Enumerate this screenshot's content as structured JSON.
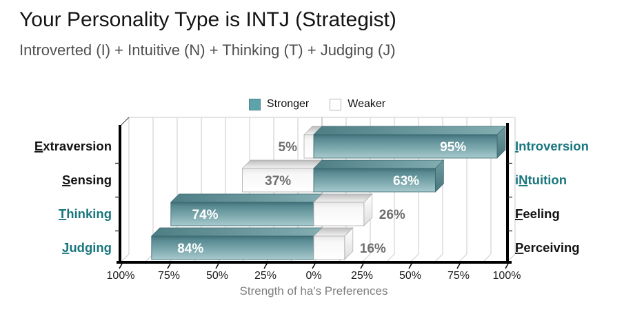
{
  "header": {
    "title": "Your Personality Type is INTJ (Strategist)",
    "subtitle": "Introverted (I) + Intuitive (N) + Thinking (T) + Judging (J)"
  },
  "legend": {
    "stronger": "Stronger",
    "weaker": "Weaker"
  },
  "colors": {
    "stronger_fill": "#5ca4a9",
    "weaker_fill": "#ffffff",
    "teal_label": "#19767d",
    "black_label": "#131313",
    "weaker_value_text": "#6e6e6e",
    "stronger_value_text": "#ffffff",
    "axis_tick_text": "#1a1a1a",
    "axis_title_text": "#7e7e7e"
  },
  "chart_data": {
    "type": "bar",
    "subtype": "diverging-horizontal-3d",
    "title": "",
    "xlabel": "Strength of ha's Preferences",
    "x_tick_labels": [
      "100%",
      "75%",
      "50%",
      "25%",
      "0%",
      "25%",
      "50%",
      "75%",
      "100%"
    ],
    "xlim_pct": [
      -100,
      100
    ],
    "grid_step_pct": 12.5,
    "grid": true,
    "legend_entries": [
      "Stronger",
      "Weaker"
    ],
    "legend_position": "top-center",
    "rows": [
      {
        "left": {
          "label": "Extraversion",
          "underline_index": 0,
          "value_pct": 5,
          "value_label": "5%",
          "strength": "weaker"
        },
        "right": {
          "label": "Introversion",
          "underline_index": 0,
          "value_pct": 95,
          "value_label": "95%",
          "strength": "stronger"
        }
      },
      {
        "left": {
          "label": "Sensing",
          "underline_index": 0,
          "value_pct": 37,
          "value_label": "37%",
          "strength": "weaker"
        },
        "right": {
          "label": "iNtuition",
          "underline_index": 1,
          "value_pct": 63,
          "value_label": "63%",
          "strength": "stronger"
        }
      },
      {
        "left": {
          "label": "Thinking",
          "underline_index": 0,
          "value_pct": 74,
          "value_label": "74%",
          "strength": "stronger"
        },
        "right": {
          "label": "Feeling",
          "underline_index": 0,
          "value_pct": 26,
          "value_label": "26%",
          "strength": "weaker"
        }
      },
      {
        "left": {
          "label": "Judging",
          "underline_index": 0,
          "value_pct": 84,
          "value_label": "84%",
          "strength": "stronger"
        },
        "right": {
          "label": "Perceiving",
          "underline_index": 0,
          "value_pct": 16,
          "value_label": "16%",
          "strength": "weaker"
        }
      }
    ]
  }
}
